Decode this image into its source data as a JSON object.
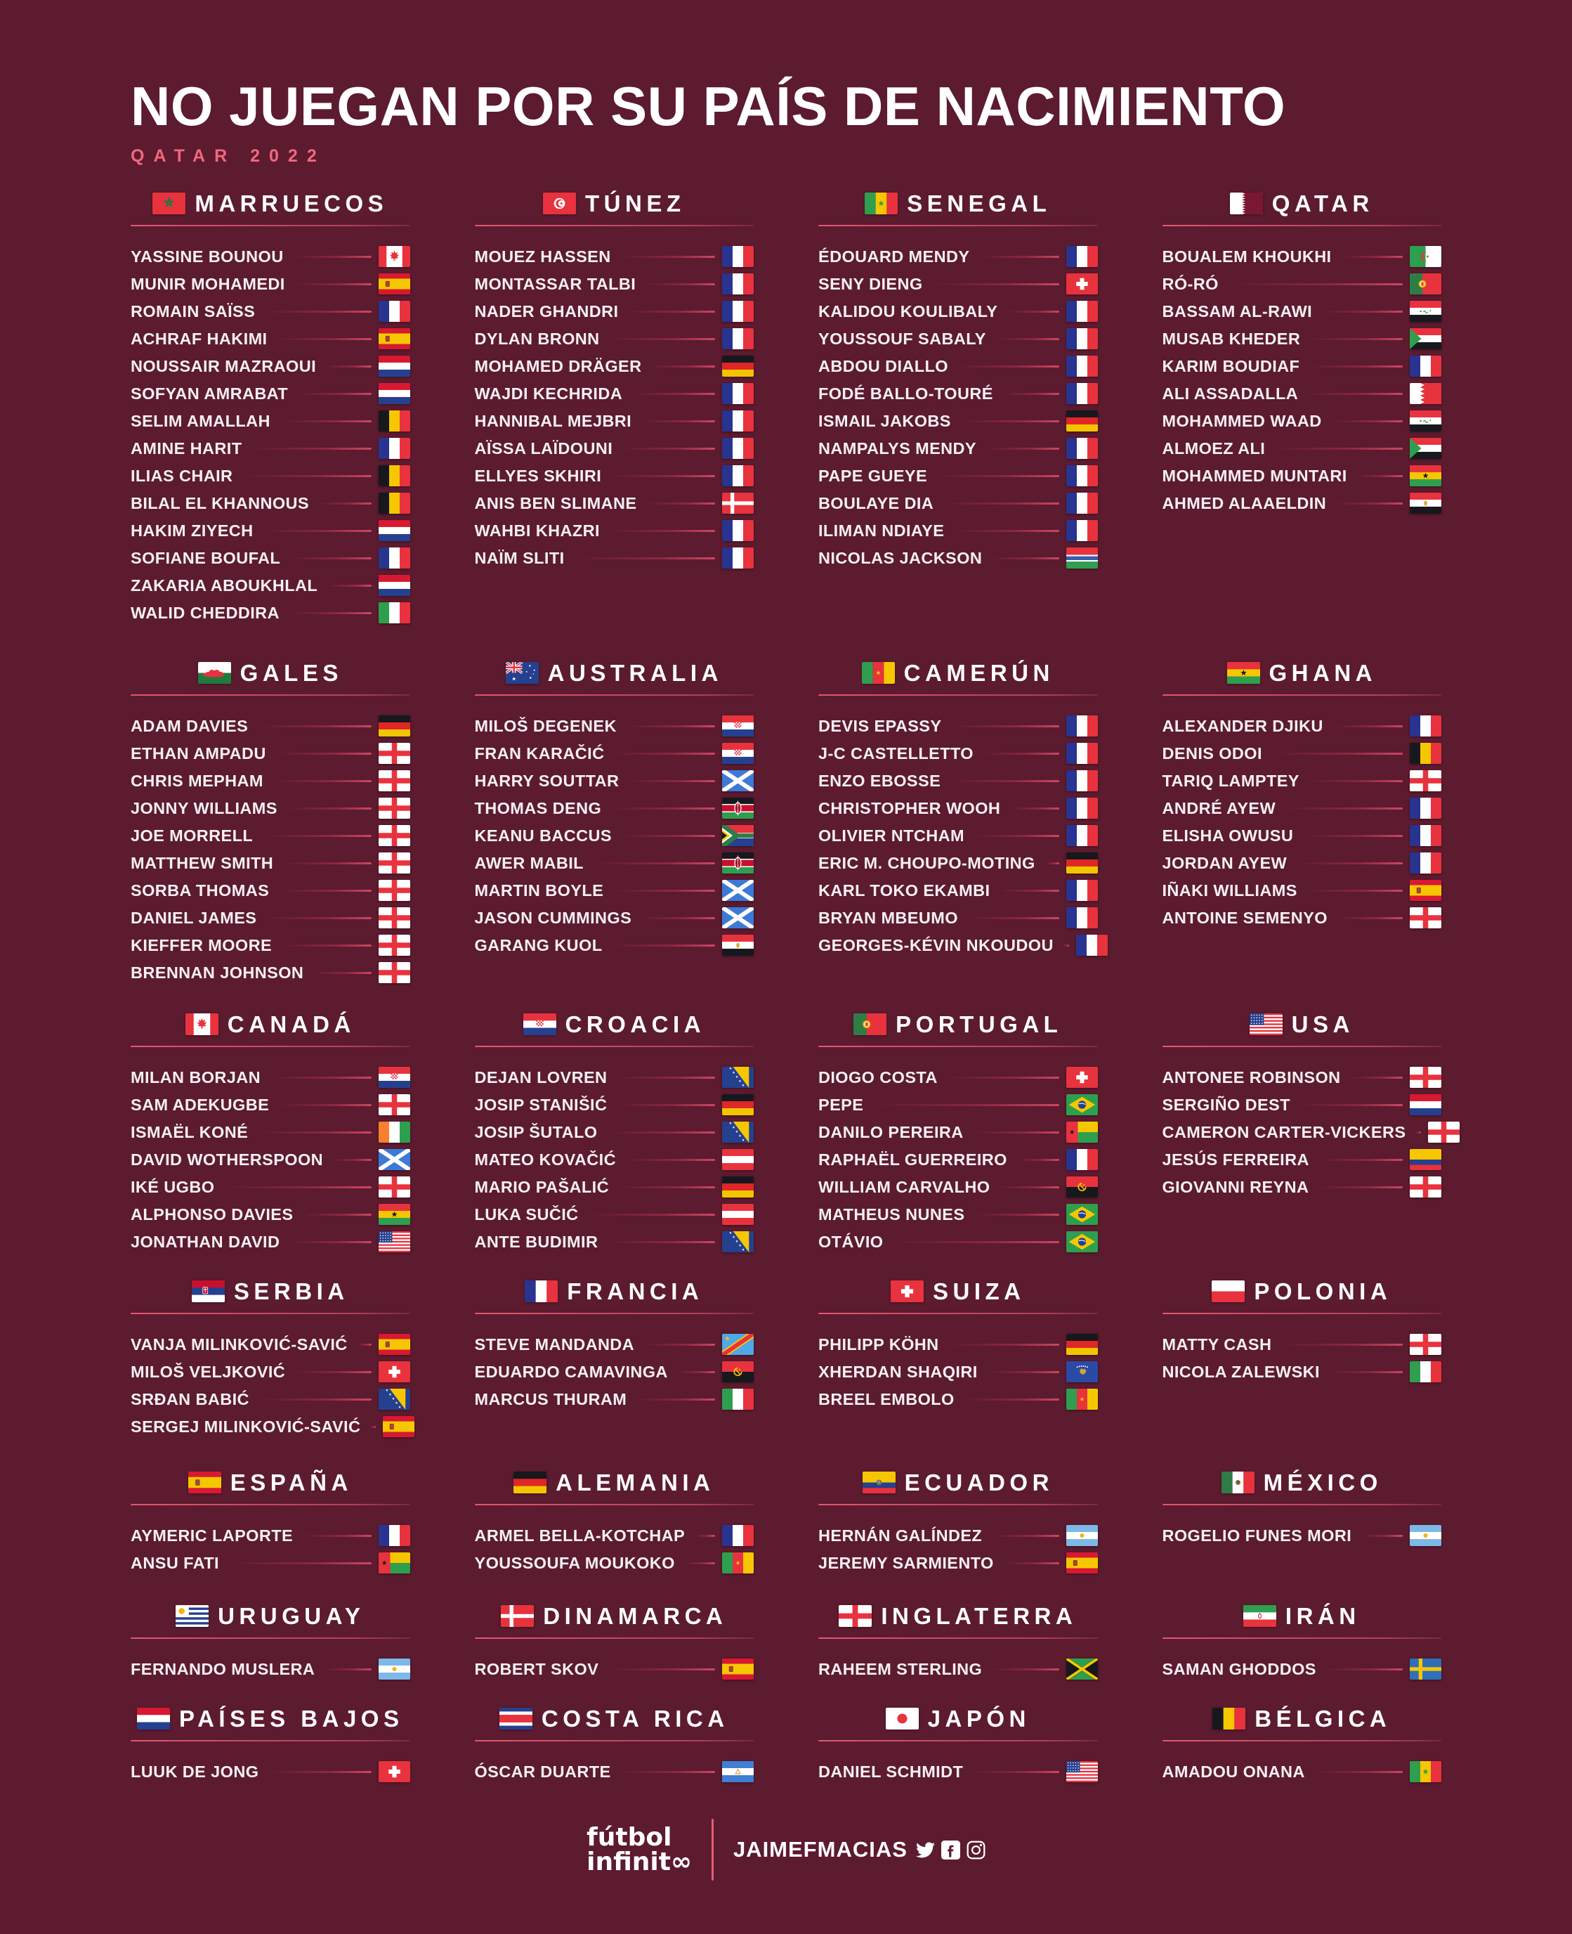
{
  "page": {
    "title": "NO JUEGAN POR SU PAÍS DE NACIMIENTO",
    "subtitle": "QATAR 2022",
    "colors": {
      "background": "#5C1B2F",
      "accent_pink": "#F3677D",
      "rule_pink": "#E85C74",
      "text": "#FFFFFF"
    }
  },
  "footer": {
    "brand_line1": "fútbol",
    "brand_line2": "infinit∞",
    "credit": "JAIMEFMACIAS",
    "social_icons": [
      "twitter-icon",
      "facebook-icon",
      "instagram-icon"
    ]
  },
  "sections": [
    {
      "country": "MARRUECOS",
      "flag": "morocco",
      "players": [
        {
          "name": "YASSINE BOUNOU",
          "birth_flag": "canada"
        },
        {
          "name": "MUNIR MOHAMEDI",
          "birth_flag": "spain"
        },
        {
          "name": "ROMAIN SAÏSS",
          "birth_flag": "france"
        },
        {
          "name": "ACHRAF HAKIMI",
          "birth_flag": "spain"
        },
        {
          "name": "NOUSSAIR MAZRAOUI",
          "birth_flag": "netherlands"
        },
        {
          "name": "SOFYAN AMRABAT",
          "birth_flag": "netherlands"
        },
        {
          "name": "SELIM AMALLAH",
          "birth_flag": "belgium"
        },
        {
          "name": "AMINE HARIT",
          "birth_flag": "france"
        },
        {
          "name": "ILIAS CHAIR",
          "birth_flag": "belgium"
        },
        {
          "name": "BILAL EL KHANNOUS",
          "birth_flag": "belgium"
        },
        {
          "name": "HAKIM ZIYECH",
          "birth_flag": "netherlands"
        },
        {
          "name": "SOFIANE BOUFAL",
          "birth_flag": "france"
        },
        {
          "name": "ZAKARIA ABOUKHLAL",
          "birth_flag": "netherlands"
        },
        {
          "name": "WALID CHEDDIRA",
          "birth_flag": "italy"
        }
      ]
    },
    {
      "country": "TÚNEZ",
      "flag": "tunisia",
      "players": [
        {
          "name": "MOUEZ HASSEN",
          "birth_flag": "france"
        },
        {
          "name": "MONTASSAR TALBI",
          "birth_flag": "france"
        },
        {
          "name": "NADER GHANDRI",
          "birth_flag": "france"
        },
        {
          "name": "DYLAN BRONN",
          "birth_flag": "france"
        },
        {
          "name": "MOHAMED DRÄGER",
          "birth_flag": "germany"
        },
        {
          "name": "WAJDI KECHRIDA",
          "birth_flag": "france"
        },
        {
          "name": "HANNIBAL MEJBRI",
          "birth_flag": "france"
        },
        {
          "name": "AÏSSA LAÏDOUNI",
          "birth_flag": "france"
        },
        {
          "name": "ELLYES SKHIRI",
          "birth_flag": "france"
        },
        {
          "name": "ANIS BEN SLIMANE",
          "birth_flag": "denmark"
        },
        {
          "name": "WAHBI KHAZRI",
          "birth_flag": "france"
        },
        {
          "name": "NAÏM SLITI",
          "birth_flag": "france"
        }
      ]
    },
    {
      "country": "SENEGAL",
      "flag": "senegal",
      "players": [
        {
          "name": "ÉDOUARD MENDY",
          "birth_flag": "france"
        },
        {
          "name": "SENY DIENG",
          "birth_flag": "switzerland"
        },
        {
          "name": "KALIDOU KOULIBALY",
          "birth_flag": "france"
        },
        {
          "name": "YOUSSOUF SABALY",
          "birth_flag": "france"
        },
        {
          "name": "ABDOU DIALLO",
          "birth_flag": "france"
        },
        {
          "name": "FODÉ BALLO-TOURÉ",
          "birth_flag": "france"
        },
        {
          "name": "ISMAIL JAKOBS",
          "birth_flag": "germany"
        },
        {
          "name": "NAMPALYS MENDY",
          "birth_flag": "france"
        },
        {
          "name": "PAPE GUEYE",
          "birth_flag": "france"
        },
        {
          "name": "BOULAYE DIA",
          "birth_flag": "france"
        },
        {
          "name": "ILIMAN NDIAYE",
          "birth_flag": "france"
        },
        {
          "name": "NICOLAS JACKSON",
          "birth_flag": "gambia"
        }
      ]
    },
    {
      "country": "QATAR",
      "flag": "qatar",
      "players": [
        {
          "name": "BOUALEM KHOUKHI",
          "birth_flag": "algeria"
        },
        {
          "name": "RÓ-RÓ",
          "birth_flag": "portugal"
        },
        {
          "name": "BASSAM AL-RAWI",
          "birth_flag": "iraq"
        },
        {
          "name": "MUSAB KHEDER",
          "birth_flag": "sudan"
        },
        {
          "name": "KARIM BOUDIAF",
          "birth_flag": "france"
        },
        {
          "name": "ALI ASSADALLA",
          "birth_flag": "bahrain"
        },
        {
          "name": "MOHAMMED WAAD",
          "birth_flag": "iraq"
        },
        {
          "name": "ALMOEZ ALI",
          "birth_flag": "sudan"
        },
        {
          "name": "MOHAMMED MUNTARI",
          "birth_flag": "ghana"
        },
        {
          "name": "AHMED ALAAELDIN",
          "birth_flag": "egypt"
        }
      ]
    },
    {
      "country": "GALES",
      "flag": "wales",
      "players": [
        {
          "name": "ADAM DAVIES",
          "birth_flag": "germany"
        },
        {
          "name": "ETHAN AMPADU",
          "birth_flag": "england"
        },
        {
          "name": "CHRIS MEPHAM",
          "birth_flag": "england"
        },
        {
          "name": "JONNY WILLIAMS",
          "birth_flag": "england"
        },
        {
          "name": "JOE MORRELL",
          "birth_flag": "england"
        },
        {
          "name": "MATTHEW SMITH",
          "birth_flag": "england"
        },
        {
          "name": "SORBA THOMAS",
          "birth_flag": "england"
        },
        {
          "name": "DANIEL JAMES",
          "birth_flag": "england"
        },
        {
          "name": "KIEFFER MOORE",
          "birth_flag": "england"
        },
        {
          "name": "BRENNAN JOHNSON",
          "birth_flag": "england"
        }
      ]
    },
    {
      "country": "AUSTRALIA",
      "flag": "australia",
      "players": [
        {
          "name": "MILOŠ DEGENEK",
          "birth_flag": "croatia"
        },
        {
          "name": "FRAN KARAČIĆ",
          "birth_flag": "croatia"
        },
        {
          "name": "HARRY SOUTTAR",
          "birth_flag": "scotland"
        },
        {
          "name": "THOMAS DENG",
          "birth_flag": "kenya"
        },
        {
          "name": "KEANU BACCUS",
          "birth_flag": "south-africa"
        },
        {
          "name": "AWER MABIL",
          "birth_flag": "kenya"
        },
        {
          "name": "MARTIN BOYLE",
          "birth_flag": "scotland"
        },
        {
          "name": "JASON CUMMINGS",
          "birth_flag": "scotland"
        },
        {
          "name": "GARANG KUOL",
          "birth_flag": "egypt"
        }
      ]
    },
    {
      "country": "CAMERÚN",
      "flag": "cameroon",
      "players": [
        {
          "name": "DEVIS EPASSY",
          "birth_flag": "france"
        },
        {
          "name": "J-C CASTELLETTO",
          "birth_flag": "france"
        },
        {
          "name": "ENZO EBOSSE",
          "birth_flag": "france"
        },
        {
          "name": "CHRISTOPHER WOOH",
          "birth_flag": "france"
        },
        {
          "name": "OLIVIER NTCHAM",
          "birth_flag": "france"
        },
        {
          "name": "ERIC M. CHOUPO-MOTING",
          "birth_flag": "germany"
        },
        {
          "name": "KARL TOKO EKAMBI",
          "birth_flag": "france"
        },
        {
          "name": "BRYAN MBEUMO",
          "birth_flag": "france"
        },
        {
          "name": "GEORGES-KÉVIN NKOUDOU",
          "birth_flag": "france"
        }
      ]
    },
    {
      "country": "GHANA",
      "flag": "ghana",
      "players": [
        {
          "name": "ALEXANDER DJIKU",
          "birth_flag": "france"
        },
        {
          "name": "DENIS ODOI",
          "birth_flag": "belgium"
        },
        {
          "name": "TARIQ LAMPTEY",
          "birth_flag": "england"
        },
        {
          "name": "ANDRÉ AYEW",
          "birth_flag": "france"
        },
        {
          "name": "ELISHA OWUSU",
          "birth_flag": "france"
        },
        {
          "name": "JORDAN AYEW",
          "birth_flag": "france"
        },
        {
          "name": "IÑAKI WILLIAMS",
          "birth_flag": "spain"
        },
        {
          "name": "ANTOINE SEMENYO",
          "birth_flag": "england"
        }
      ]
    },
    {
      "country": "CANADÁ",
      "flag": "canada",
      "players": [
        {
          "name": "MILAN BORJAN",
          "birth_flag": "croatia"
        },
        {
          "name": "SAM ADEKUGBE",
          "birth_flag": "england"
        },
        {
          "name": "ISMAËL KONÉ",
          "birth_flag": "ivory-coast"
        },
        {
          "name": "DAVID WOTHERSPOON",
          "birth_flag": "scotland"
        },
        {
          "name": "IKÉ UGBO",
          "birth_flag": "england"
        },
        {
          "name": "ALPHONSO DAVIES",
          "birth_flag": "ghana"
        },
        {
          "name": "JONATHAN DAVID",
          "birth_flag": "usa"
        }
      ]
    },
    {
      "country": "CROACIA",
      "flag": "croatia",
      "players": [
        {
          "name": "DEJAN LOVREN",
          "birth_flag": "bosnia"
        },
        {
          "name": "JOSIP STANIŠIĆ",
          "birth_flag": "germany"
        },
        {
          "name": "JOSIP ŠUTALO",
          "birth_flag": "bosnia"
        },
        {
          "name": "MATEO KOVAČIĆ",
          "birth_flag": "austria"
        },
        {
          "name": "MARIO PAŠALIĆ",
          "birth_flag": "germany"
        },
        {
          "name": "LUKA SUČIĆ",
          "birth_flag": "austria"
        },
        {
          "name": "ANTE BUDIMIR",
          "birth_flag": "bosnia"
        }
      ]
    },
    {
      "country": "PORTUGAL",
      "flag": "portugal",
      "players": [
        {
          "name": "DIOGO COSTA",
          "birth_flag": "switzerland"
        },
        {
          "name": "PEPE",
          "birth_flag": "brazil"
        },
        {
          "name": "DANILO PEREIRA",
          "birth_flag": "guinea-bissau"
        },
        {
          "name": "RAPHAËL GUERREIRO",
          "birth_flag": "france"
        },
        {
          "name": "WILLIAM CARVALHO",
          "birth_flag": "angola"
        },
        {
          "name": "MATHEUS NUNES",
          "birth_flag": "brazil"
        },
        {
          "name": "OTÁVIO",
          "birth_flag": "brazil"
        }
      ]
    },
    {
      "country": "USA",
      "flag": "usa",
      "players": [
        {
          "name": "ANTONEE ROBINSON",
          "birth_flag": "england"
        },
        {
          "name": "SERGIÑO DEST",
          "birth_flag": "netherlands"
        },
        {
          "name": "CAMERON CARTER-VICKERS",
          "birth_flag": "england"
        },
        {
          "name": "JESÚS FERREIRA",
          "birth_flag": "colombia"
        },
        {
          "name": "GIOVANNI REYNA",
          "birth_flag": "england"
        }
      ]
    },
    {
      "country": "SERBIA",
      "flag": "serbia",
      "players": [
        {
          "name": "VANJA MILINKOVIĆ-SAVIĆ",
          "birth_flag": "spain"
        },
        {
          "name": "MILOŠ VELJKOVIĆ",
          "birth_flag": "switzerland"
        },
        {
          "name": "SRĐAN BABIĆ",
          "birth_flag": "bosnia"
        },
        {
          "name": "SERGEJ MILINKOVIĆ-SAVIĆ",
          "birth_flag": "spain"
        }
      ]
    },
    {
      "country": "FRANCIA",
      "flag": "france",
      "players": [
        {
          "name": "STEVE MANDANDA",
          "birth_flag": "drcongo"
        },
        {
          "name": "EDUARDO CAMAVINGA",
          "birth_flag": "angola"
        },
        {
          "name": "MARCUS THURAM",
          "birth_flag": "italy"
        }
      ]
    },
    {
      "country": "SUIZA",
      "flag": "switzerland",
      "players": [
        {
          "name": "PHILIPP KÖHN",
          "birth_flag": "germany"
        },
        {
          "name": "XHERDAN SHAQIRI",
          "birth_flag": "kosovo"
        },
        {
          "name": "BREEL EMBOLO",
          "birth_flag": "cameroon"
        }
      ]
    },
    {
      "country": "POLONIA",
      "flag": "poland",
      "players": [
        {
          "name": "MATTY CASH",
          "birth_flag": "england"
        },
        {
          "name": "NICOLA ZALEWSKI",
          "birth_flag": "italy"
        }
      ]
    },
    {
      "country": "ESPAÑA",
      "flag": "spain",
      "players": [
        {
          "name": "AYMERIC LAPORTE",
          "birth_flag": "france"
        },
        {
          "name": "ANSU FATI",
          "birth_flag": "guinea-bissau"
        }
      ]
    },
    {
      "country": "ALEMANIA",
      "flag": "germany",
      "players": [
        {
          "name": "ARMEL BELLA-KOTCHAP",
          "birth_flag": "france"
        },
        {
          "name": "YOUSSOUFA MOUKOKO",
          "birth_flag": "cameroon"
        }
      ]
    },
    {
      "country": "ECUADOR",
      "flag": "ecuador",
      "players": [
        {
          "name": "HERNÁN GALÍNDEZ",
          "birth_flag": "argentina"
        },
        {
          "name": "JEREMY SARMIENTO",
          "birth_flag": "spain"
        }
      ]
    },
    {
      "country": "MÉXICO",
      "flag": "mexico",
      "players": [
        {
          "name": "ROGELIO FUNES MORI",
          "birth_flag": "argentina"
        }
      ]
    },
    {
      "country": "URUGUAY",
      "flag": "uruguay",
      "players": [
        {
          "name": "FERNANDO MUSLERA",
          "birth_flag": "argentina"
        }
      ]
    },
    {
      "country": "DINAMARCA",
      "flag": "denmark",
      "players": [
        {
          "name": "ROBERT SKOV",
          "birth_flag": "spain"
        }
      ]
    },
    {
      "country": "INGLATERRA",
      "flag": "england",
      "players": [
        {
          "name": "RAHEEM STERLING",
          "birth_flag": "jamaica"
        }
      ]
    },
    {
      "country": "IRÁN",
      "flag": "iran",
      "players": [
        {
          "name": "SAMAN GHODDOS",
          "birth_flag": "sweden"
        }
      ]
    },
    {
      "country": "PAÍSES BAJOS",
      "flag": "netherlands",
      "players": [
        {
          "name": "LUUK DE JONG",
          "birth_flag": "switzerland"
        }
      ]
    },
    {
      "country": "COSTA RICA",
      "flag": "costa-rica",
      "players": [
        {
          "name": "ÓSCAR DUARTE",
          "birth_flag": "nicaragua"
        }
      ]
    },
    {
      "country": "JAPÓN",
      "flag": "japan",
      "players": [
        {
          "name": "DANIEL SCHMIDT",
          "birth_flag": "usa"
        }
      ]
    },
    {
      "country": "BÉLGICA",
      "flag": "belgium",
      "players": [
        {
          "name": "AMADOU ONANA",
          "birth_flag": "senegal"
        }
      ]
    }
  ]
}
